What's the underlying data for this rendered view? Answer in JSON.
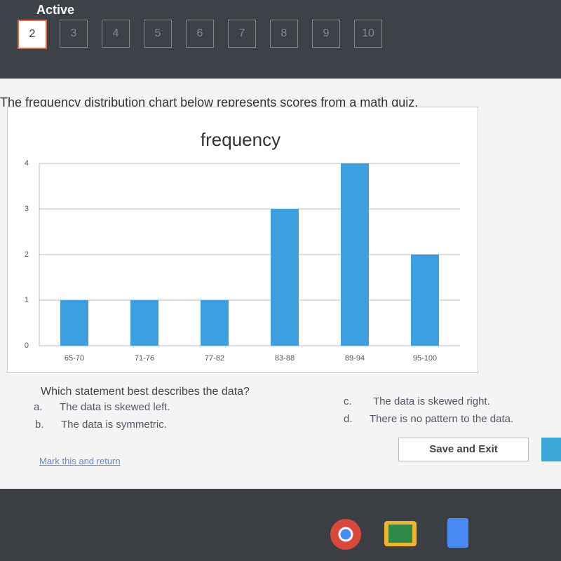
{
  "header": {
    "status": "Active",
    "questions": [
      "2",
      "3",
      "4",
      "5",
      "6",
      "7",
      "8",
      "9",
      "10"
    ]
  },
  "question": {
    "prompt": "The frequency distribution chart below represents scores from a math quiz.",
    "ask": "Which statement best describes the data?",
    "options": [
      {
        "letter": "a.",
        "text": "The data is skewed left."
      },
      {
        "letter": "b.",
        "text": "The data is symmetric."
      },
      {
        "letter": "c.",
        "text": "The data is skewed right."
      },
      {
        "letter": "d.",
        "text": "There is no pattern to the data."
      }
    ]
  },
  "chart_data": {
    "type": "bar",
    "title": "frequency",
    "categories": [
      "65-70",
      "71-76",
      "77-82",
      "83-88",
      "89-94",
      "95-100"
    ],
    "values": [
      1,
      1,
      1,
      3,
      4,
      2
    ],
    "color": "#3d9ee0",
    "ylim": [
      0,
      4
    ],
    "yticks": [
      0,
      1,
      2,
      3,
      4
    ],
    "grid": true
  },
  "footer": {
    "link": "Mark this and return",
    "button": "Save and Exit"
  }
}
